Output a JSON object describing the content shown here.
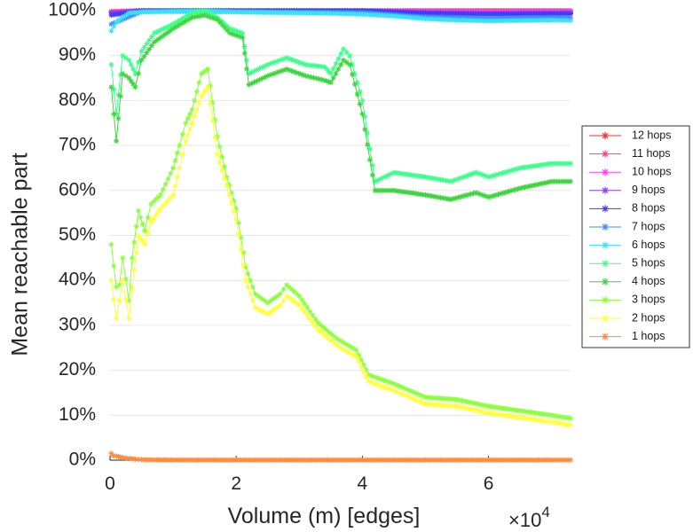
{
  "chart_data": {
    "type": "line",
    "title": "",
    "xlabel": "Volume (m) [edges]",
    "ylabel": "Mean reachable part",
    "x_exponent_base": "×10",
    "x_exponent_power": "4",
    "xlim": [
      0,
      7.3
    ],
    "ylim": [
      0,
      100
    ],
    "x_ticks": [
      0,
      2,
      4,
      6
    ],
    "x_tick_labels": [
      "0",
      "2",
      "4",
      "6"
    ],
    "y_ticks": [
      0,
      10,
      20,
      30,
      40,
      50,
      60,
      70,
      80,
      90,
      100
    ],
    "y_tick_labels": [
      "0%",
      "10%",
      "20%",
      "30%",
      "40%",
      "50%",
      "60%",
      "70%",
      "80%",
      "90%",
      "100%"
    ],
    "grid": true,
    "legend_position": "right",
    "series": [
      {
        "name": "12 hops",
        "color": "#ff2a2a",
        "x": [
          0.02,
          0.5,
          1,
          2,
          3,
          4,
          5,
          6,
          7,
          7.3
        ],
        "y": [
          99.8,
          100,
          100,
          100,
          100,
          100,
          100,
          100,
          100,
          100
        ]
      },
      {
        "name": "11 hops",
        "color": "#ff3d8b",
        "x": [
          0.02,
          0.5,
          1,
          2,
          3,
          4,
          5,
          6,
          7,
          7.3
        ],
        "y": [
          99.7,
          100,
          100,
          100,
          100,
          100,
          100,
          100,
          100,
          100
        ]
      },
      {
        "name": "10 hops",
        "color": "#ff3dff",
        "x": [
          0.02,
          0.5,
          1,
          2,
          3,
          4,
          5,
          6,
          7,
          7.3
        ],
        "y": [
          99.6,
          100,
          100,
          100,
          100,
          100,
          99.8,
          99.7,
          99.8,
          99.8
        ]
      },
      {
        "name": "9 hops",
        "color": "#8b3dff",
        "x": [
          0.02,
          0.5,
          1,
          2,
          3,
          4,
          5,
          6,
          7,
          7.3
        ],
        "y": [
          99.5,
          100,
          100,
          100,
          100,
          100,
          99.6,
          99.4,
          99.5,
          99.5
        ]
      },
      {
        "name": "8 hops",
        "color": "#3d3dff",
        "x": [
          0.02,
          0.5,
          1,
          2,
          3,
          4,
          5,
          6,
          7,
          7.3
        ],
        "y": [
          99.0,
          100,
          100,
          100,
          100,
          100,
          99.4,
          99.2,
          99.3,
          99.3
        ]
      },
      {
        "name": "7 hops",
        "color": "#3d8bff",
        "x": [
          0.02,
          0.5,
          1,
          2,
          3,
          4,
          5,
          6,
          7,
          7.3
        ],
        "y": [
          97.0,
          99.8,
          99.9,
          99.8,
          99.7,
          99.6,
          98.6,
          98.3,
          98.5,
          98.4
        ]
      },
      {
        "name": "6 hops",
        "color": "#3de0ff",
        "x": [
          0.02,
          0.1,
          0.3,
          0.5,
          1,
          1.5,
          2,
          2.5,
          3,
          3.5,
          4,
          4.5,
          5,
          5.5,
          6,
          6.5,
          7,
          7.3
        ],
        "y": [
          95.5,
          97.5,
          99.5,
          99.7,
          99.8,
          99.9,
          99.7,
          99.6,
          99.5,
          99.4,
          99.2,
          98.8,
          98.2,
          97.9,
          97.7,
          97.8,
          97.9,
          97.8
        ]
      },
      {
        "name": "5 hops",
        "color": "#3dff8b",
        "x": [
          0.02,
          0.1,
          0.2,
          0.3,
          0.4,
          0.5,
          0.7,
          1.0,
          1.3,
          1.5,
          1.7,
          1.9,
          2.1,
          2.2,
          2.5,
          2.8,
          3.1,
          3.4,
          3.5,
          3.7,
          3.8,
          4.0,
          4.2,
          4.5,
          5.0,
          5.4,
          5.8,
          6.0,
          6.5,
          7.0,
          7.3
        ],
        "y": [
          88,
          77,
          90,
          89,
          86,
          91,
          95,
          97,
          99.5,
          100,
          98.5,
          96,
          95,
          86,
          88,
          89.5,
          88,
          87.5,
          86,
          91.5,
          90,
          80,
          62,
          64,
          63,
          62,
          64,
          63,
          65,
          66,
          66
        ]
      },
      {
        "name": "4 hops",
        "color": "#3dd43d",
        "x": [
          0.02,
          0.1,
          0.2,
          0.3,
          0.4,
          0.5,
          0.7,
          1.0,
          1.3,
          1.5,
          1.7,
          1.9,
          2.1,
          2.2,
          2.5,
          2.8,
          3.1,
          3.4,
          3.5,
          3.7,
          3.8,
          4.0,
          4.2,
          4.5,
          5.0,
          5.4,
          5.8,
          6.0,
          6.5,
          7.0,
          7.3
        ],
        "y": [
          83,
          71,
          86,
          85,
          83,
          89,
          93,
          96,
          98.5,
          99,
          98,
          95,
          94,
          83.5,
          85.5,
          87,
          85.5,
          84.5,
          84,
          89,
          88,
          77,
          60,
          60,
          59,
          58,
          59.5,
          58.5,
          60.5,
          62,
          62
        ]
      },
      {
        "name": "3 hops",
        "color": "#8bff3d",
        "x": [
          0.02,
          0.1,
          0.15,
          0.2,
          0.3,
          0.35,
          0.45,
          0.55,
          0.65,
          0.8,
          1.0,
          1.1,
          1.2,
          1.3,
          1.45,
          1.55,
          1.7,
          1.85,
          2.0,
          2.15,
          2.3,
          2.5,
          2.7,
          2.8,
          3.0,
          3.3,
          3.6,
          3.9,
          4.1,
          4.5,
          5.0,
          5.5,
          6.0,
          6.5,
          7.0,
          7.3
        ],
        "y": [
          48,
          38.5,
          39,
          45,
          35.5,
          45,
          55.5,
          51,
          57,
          59,
          65,
          70,
          75,
          78,
          86,
          87,
          72,
          63,
          56,
          43,
          37,
          35,
          37,
          39,
          36.5,
          30.5,
          27,
          24.5,
          19,
          17,
          14,
          13.5,
          12,
          11,
          10,
          9.3
        ]
      },
      {
        "name": "2 hops",
        "color": "#ffff3d",
        "x": [
          0.02,
          0.1,
          0.15,
          0.2,
          0.3,
          0.35,
          0.45,
          0.55,
          0.65,
          0.8,
          1.0,
          1.1,
          1.2,
          1.3,
          1.45,
          1.55,
          1.7,
          1.85,
          2.0,
          2.15,
          2.3,
          2.5,
          2.7,
          2.8,
          3.0,
          3.3,
          3.6,
          3.9,
          4.1,
          4.5,
          5.0,
          5.5,
          6.0,
          6.5,
          7.0,
          7.3
        ],
        "y": [
          40,
          31.5,
          35.5,
          40,
          31.5,
          38.5,
          50,
          48,
          53,
          56,
          59,
          65,
          71,
          75,
          81,
          83,
          68,
          61,
          53.5,
          40,
          34,
          32.5,
          34.5,
          36.5,
          34.5,
          29,
          25.5,
          23,
          17.5,
          15.5,
          12.5,
          12,
          10.5,
          9.5,
          8.5,
          7.8
        ]
      },
      {
        "name": "1 hops",
        "color": "#ff8b3d",
        "x": [
          0.02,
          0.05,
          0.1,
          0.2,
          0.3,
          0.4,
          0.5,
          0.7,
          1,
          2,
          3,
          4,
          5,
          6,
          7,
          7.3
        ],
        "y": [
          1.5,
          1.0,
          0.9,
          0.6,
          0.4,
          0.25,
          0.15,
          0.08,
          0.05,
          0.05,
          0.05,
          0.05,
          0.05,
          0.05,
          0.05,
          0.05
        ]
      }
    ]
  }
}
